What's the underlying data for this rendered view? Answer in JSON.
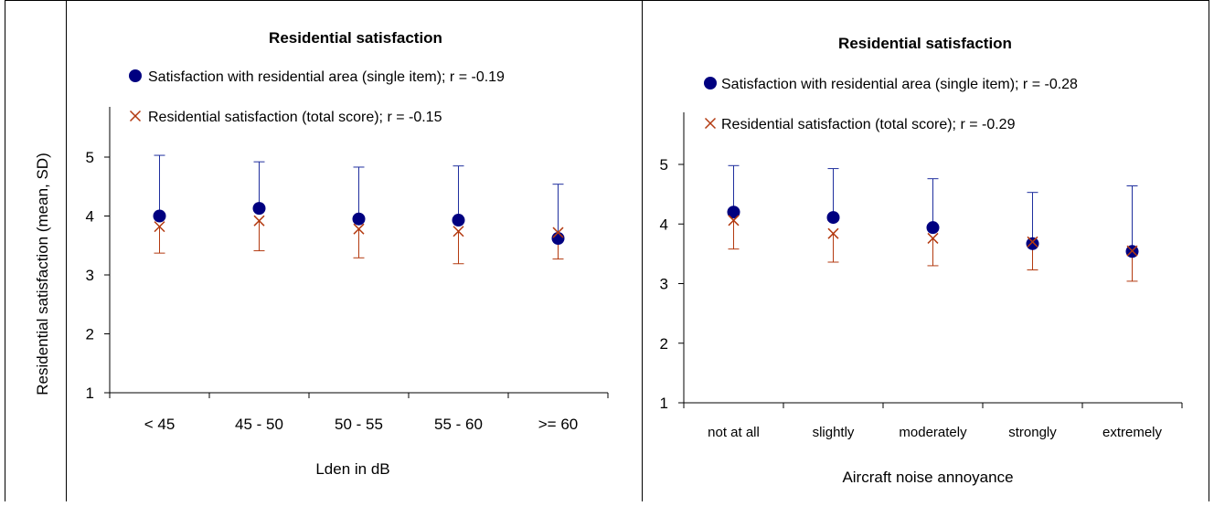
{
  "chart_data": [
    {
      "type": "scatter",
      "title": "Residential satisfaction",
      "ylabel": "Residential satisfaction (mean, SD)",
      "xlabel": "Lden in dB",
      "categories": [
        "< 45",
        "45 - 50",
        "50 - 55",
        "55 - 60",
        ">= 60"
      ],
      "y_ticks": [
        "1",
        "2",
        "3",
        "4",
        "5"
      ],
      "ylim": [
        1,
        5.8
      ],
      "series": [
        {
          "name": "Satisfaction with residential area (single item); r = -0.19",
          "marker": "circle",
          "color": "#000080",
          "error_bar_color": "#1f2f9e",
          "values": [
            4.0,
            4.13,
            3.95,
            3.93,
            3.62
          ],
          "upper": [
            5.03,
            4.92,
            4.83,
            4.85,
            4.54
          ]
        },
        {
          "name": "Residential satisfaction (total score); r = -0.15",
          "marker": "x",
          "color": "#b33a10",
          "error_bar_color": "#b33a10",
          "values": [
            3.82,
            3.92,
            3.78,
            3.74,
            3.72
          ],
          "lower": [
            3.37,
            3.41,
            3.29,
            3.19,
            3.27
          ]
        }
      ]
    },
    {
      "type": "scatter",
      "title": "Residential satisfaction",
      "ylabel": "",
      "xlabel": "Aircraft noise annoyance",
      "categories": [
        "not at all",
        "slightly",
        "moderately",
        "strongly",
        "extremely"
      ],
      "y_ticks": [
        "1",
        "2",
        "3",
        "4",
        "5"
      ],
      "ylim": [
        1,
        5.95
      ],
      "series": [
        {
          "name": "Satisfaction with residential area (single item); r = -0.28",
          "marker": "circle",
          "color": "#000080",
          "error_bar_color": "#1f2f9e",
          "values": [
            4.2,
            4.11,
            3.94,
            3.67,
            3.54
          ],
          "upper": [
            4.98,
            4.93,
            4.76,
            4.53,
            4.64
          ]
        },
        {
          "name": "Residential satisfaction (total score); r = -0.29",
          "marker": "x",
          "color": "#b33a10",
          "error_bar_color": "#b33a10",
          "values": [
            4.06,
            3.84,
            3.76,
            3.7,
            3.55
          ],
          "lower": [
            3.58,
            3.36,
            3.3,
            3.23,
            3.04
          ]
        }
      ]
    }
  ]
}
